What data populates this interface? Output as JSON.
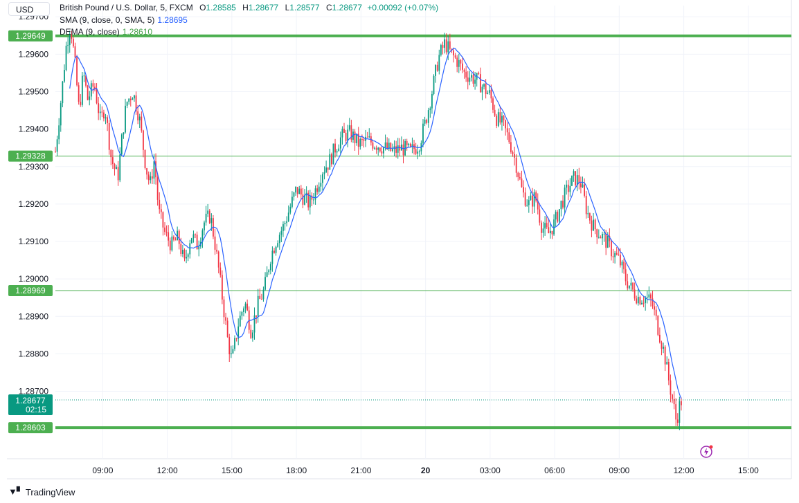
{
  "header": {
    "currency_button": "USD",
    "symbol_title": "British Pound / U.S. Dollar, 5, FXCM",
    "ohlc": [
      {
        "key": "O",
        "value": "1.28585"
      },
      {
        "key": "H",
        "value": "1.28677"
      },
      {
        "key": "L",
        "value": "1.28577"
      },
      {
        "key": "C",
        "value": "1.28677"
      }
    ],
    "change": "+0.00092 (+0.07%)",
    "sma_label": "SMA (9, close, 0, SMA, 5)",
    "sma_value": "1.28695",
    "dema_label": "DEMA (9, close)",
    "dema_value": "1.28610"
  },
  "footer": {
    "brand": "TradingView"
  },
  "colors": {
    "up": "#089981",
    "down": "#f23645",
    "sma": "#2962ff",
    "level_line": "#4caf50",
    "price_tag": "#089981",
    "grid": "#f0f3fa"
  },
  "chart_data": {
    "type": "candlestick",
    "title": "British Pound / U.S. Dollar, 5, FXCM",
    "ylim": [
      1.2852,
      1.2973
    ],
    "y_ticks": [
      "1.29700",
      "1.29600",
      "1.29500",
      "1.29400",
      "1.29300",
      "1.29200",
      "1.29100",
      "1.29000",
      "1.28900",
      "1.28800",
      "1.28700"
    ],
    "x_ticks": [
      "09:00",
      "12:00",
      "15:00",
      "18:00",
      "21:00",
      "20",
      "03:00",
      "06:00",
      "09:00",
      "12:00",
      "15:00"
    ],
    "x_tick_values": [
      9,
      12,
      15,
      18,
      21,
      24,
      27,
      30,
      33,
      36,
      39
    ],
    "xlim": [
      6.8,
      41.0
    ],
    "horizontal_levels": [
      {
        "value": 1.29649,
        "label": "1.29649",
        "style": "thick"
      },
      {
        "value": 1.29328,
        "label": "1.29328",
        "style": "thin"
      },
      {
        "value": 1.28969,
        "label": "1.28969",
        "style": "thin"
      },
      {
        "value": 1.28603,
        "label": "1.28603",
        "style": "thick"
      }
    ],
    "last_price": {
      "value": 1.28677,
      "label": "1.28677",
      "countdown": "02:15"
    },
    "price_path": [
      [
        6.8,
        1.2934
      ],
      [
        7.1,
        1.295
      ],
      [
        7.3,
        1.2962
      ],
      [
        7.5,
        1.2968
      ],
      [
        7.7,
        1.2958
      ],
      [
        7.9,
        1.2945
      ],
      [
        8.1,
        1.2955
      ],
      [
        8.3,
        1.2948
      ],
      [
        8.6,
        1.2952
      ],
      [
        8.9,
        1.2942
      ],
      [
        9.1,
        1.2946
      ],
      [
        9.4,
        1.2932
      ],
      [
        9.7,
        1.2927
      ],
      [
        9.9,
        1.2938
      ],
      [
        10.1,
        1.2947
      ],
      [
        10.4,
        1.295
      ],
      [
        10.7,
        1.2943
      ],
      [
        11.0,
        1.293
      ],
      [
        11.2,
        1.2925
      ],
      [
        11.4,
        1.2932
      ],
      [
        11.6,
        1.2918
      ],
      [
        11.9,
        1.2912
      ],
      [
        12.2,
        1.2909
      ],
      [
        12.5,
        1.2911
      ],
      [
        12.8,
        1.2904
      ],
      [
        13.1,
        1.2912
      ],
      [
        13.4,
        1.2909
      ],
      [
        13.7,
        1.2915
      ],
      [
        14.0,
        1.2917
      ],
      [
        14.2,
        1.291
      ],
      [
        14.4,
        1.2902
      ],
      [
        14.6,
        1.2893
      ],
      [
        14.8,
        1.2884
      ],
      [
        15.0,
        1.2878
      ],
      [
        15.3,
        1.2888
      ],
      [
        15.6,
        1.2894
      ],
      [
        15.9,
        1.2886
      ],
      [
        16.2,
        1.2893
      ],
      [
        16.5,
        1.2897
      ],
      [
        16.8,
        1.2906
      ],
      [
        17.1,
        1.2911
      ],
      [
        17.4,
        1.2914
      ],
      [
        17.7,
        1.2919
      ],
      [
        18.0,
        1.2924
      ],
      [
        18.3,
        1.2922
      ],
      [
        18.6,
        1.292
      ],
      [
        18.9,
        1.2924
      ],
      [
        19.2,
        1.2929
      ],
      [
        19.5,
        1.2931
      ],
      [
        19.8,
        1.2935
      ],
      [
        20.1,
        1.2938
      ],
      [
        20.5,
        1.2939
      ],
      [
        20.9,
        1.2936
      ],
      [
        21.3,
        1.2937
      ],
      [
        21.7,
        1.2936
      ],
      [
        22.1,
        1.2935
      ],
      [
        22.5,
        1.2934
      ],
      [
        22.9,
        1.2935
      ],
      [
        23.3,
        1.2934
      ],
      [
        23.7,
        1.2936
      ],
      [
        24.0,
        1.2942
      ],
      [
        24.3,
        1.295
      ],
      [
        24.6,
        1.2959
      ],
      [
        24.9,
        1.2963
      ],
      [
        25.2,
        1.296
      ],
      [
        25.5,
        1.2958
      ],
      [
        25.8,
        1.2955
      ],
      [
        26.1,
        1.2954
      ],
      [
        26.4,
        1.2953
      ],
      [
        26.7,
        1.2951
      ],
      [
        27.0,
        1.2949
      ],
      [
        27.3,
        1.2943
      ],
      [
        27.6,
        1.2941
      ],
      [
        27.9,
        1.2937
      ],
      [
        28.2,
        1.2931
      ],
      [
        28.5,
        1.2923
      ],
      [
        28.8,
        1.292
      ],
      [
        29.1,
        1.2922
      ],
      [
        29.4,
        1.2914
      ],
      [
        29.7,
        1.2912
      ],
      [
        30.0,
        1.2915
      ],
      [
        30.3,
        1.292
      ],
      [
        30.6,
        1.2924
      ],
      [
        30.9,
        1.2927
      ],
      [
        31.2,
        1.2926
      ],
      [
        31.5,
        1.2918
      ],
      [
        31.8,
        1.2914
      ],
      [
        32.1,
        1.2912
      ],
      [
        32.4,
        1.291
      ],
      [
        32.7,
        1.2907
      ],
      [
        33.0,
        1.2905
      ],
      [
        33.3,
        1.29
      ],
      [
        33.6,
        1.2897
      ],
      [
        33.9,
        1.2895
      ],
      [
        34.2,
        1.2895
      ],
      [
        34.5,
        1.2894
      ],
      [
        34.8,
        1.2887
      ],
      [
        35.1,
        1.288
      ],
      [
        35.3,
        1.2873
      ],
      [
        35.5,
        1.2867
      ],
      [
        35.65,
        1.2862
      ],
      [
        35.8,
        1.2866
      ],
      [
        35.9,
        1.28677
      ]
    ]
  }
}
